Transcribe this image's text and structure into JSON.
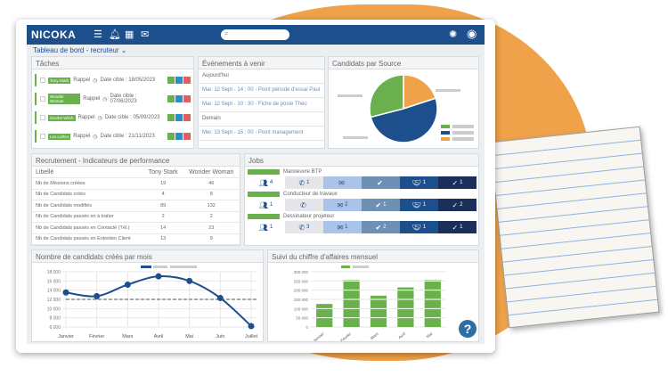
{
  "header": {
    "logo": "NICOKA",
    "icons": [
      "tasks-icon",
      "bell-icon",
      "calendar-icon",
      "mail-icon",
      "lightbulb-icon",
      "user-icon"
    ],
    "search_placeholder": ""
  },
  "breadcrumb": "Tableau de bord - recruteur",
  "colors": {
    "brand": "#1d4f8d",
    "green": "#6ab04c",
    "orange": "#f0a24a"
  },
  "tasks": {
    "title": "Tâches",
    "items": [
      {
        "name": "Tony Stark",
        "type": "Rappel",
        "date": "Date cible : 18/05/2023"
      },
      {
        "name": "Wonder Woman",
        "type": "Rappel",
        "date": "Date cible : 07/06/2023"
      },
      {
        "name": "Scarlet Witch",
        "type": "Rappel",
        "date": "Date cible : 05/09/2023"
      },
      {
        "name": "Lex Luthor",
        "type": "Rappel",
        "date": "Date cible : 21/11/2023"
      }
    ]
  },
  "events": {
    "title": "Événements à venir",
    "items": [
      {
        "text": "Aujourd'hui",
        "link": false
      },
      {
        "text": "Mar. 12 Sept - 14 : 00 - Point période d'essai Paul",
        "link": true
      },
      {
        "text": "Mar. 12 Sept - 10 : 30 - Fiche de poste Théo",
        "link": true
      },
      {
        "text": "Demain",
        "link": false
      },
      {
        "text": "Mer. 13 Sept - 15 : 00 - Point management",
        "link": true
      }
    ]
  },
  "sources": {
    "title": "Candidats par Source",
    "chart_data": {
      "type": "pie",
      "values": [
        20,
        51,
        29
      ],
      "colors": [
        "#f0a24a",
        "#1d4f8d",
        "#6ab04c"
      ]
    }
  },
  "kpi": {
    "title": "Recrutement - Indicateurs de performance",
    "headers": [
      "Libellé",
      "Tony Stark",
      "Wonder Woman"
    ],
    "rows": [
      [
        "Nb de Missions créées",
        "19",
        "46"
      ],
      [
        "Nb de Candidats créés",
        "4",
        "8"
      ],
      [
        "Nb de Candidats modifiés",
        "89",
        "132"
      ],
      [
        "Nb de Candidats passés en à traiter",
        "2",
        "2"
      ],
      [
        "Nb de Candidats passés en Contacté (Tél.)",
        "14",
        "23"
      ],
      [
        "Nb de Candidats passés en Entretien Client",
        "13",
        "9"
      ]
    ]
  },
  "jobs": {
    "title": "Jobs",
    "items": [
      {
        "name": "Manoeuvre BTP",
        "counts": [
          "4",
          "1",
          "",
          "",
          "1",
          "1"
        ]
      },
      {
        "name": "Conducteur de travaux",
        "counts": [
          "1",
          "",
          "2",
          "1",
          "1",
          "2"
        ]
      },
      {
        "name": "Dessinateur projeteur",
        "counts": [
          "1",
          "3",
          "1",
          "2",
          "1",
          "1"
        ]
      }
    ],
    "stage_icons": [
      "users-icon",
      "phone-icon",
      "envelope-icon",
      "user-check-icon",
      "handshake-icon",
      "check-icon"
    ]
  },
  "line_chart": {
    "title": "Nombre de candidats créés par mois",
    "chart_data": {
      "type": "line",
      "categories": [
        "Janvier",
        "Février",
        "Mars",
        "Avril",
        "Mai",
        "Juin",
        "Juillet"
      ],
      "values": [
        13500,
        12700,
        15200,
        17000,
        16000,
        12300,
        6200
      ],
      "reference": 12000,
      "ylim": [
        6000,
        18000
      ],
      "yticks": [
        "18 000",
        "16 000",
        "14 000",
        "12 000",
        "10 000",
        "8 000",
        "6 000"
      ]
    }
  },
  "bar_chart": {
    "title": "Suivi du chiffre d'affaires mensuel",
    "chart_data": {
      "type": "bar",
      "categories": [
        "Janvier",
        "Février",
        "Mars",
        "Avril",
        "Mai"
      ],
      "values": [
        125000,
        255000,
        170000,
        215000,
        255000
      ],
      "ylim": [
        0,
        300000
      ],
      "yticks": [
        "300 000",
        "250 000",
        "200 000",
        "150 000",
        "100 000",
        "50 000",
        "0"
      ]
    }
  },
  "help_label": "?"
}
